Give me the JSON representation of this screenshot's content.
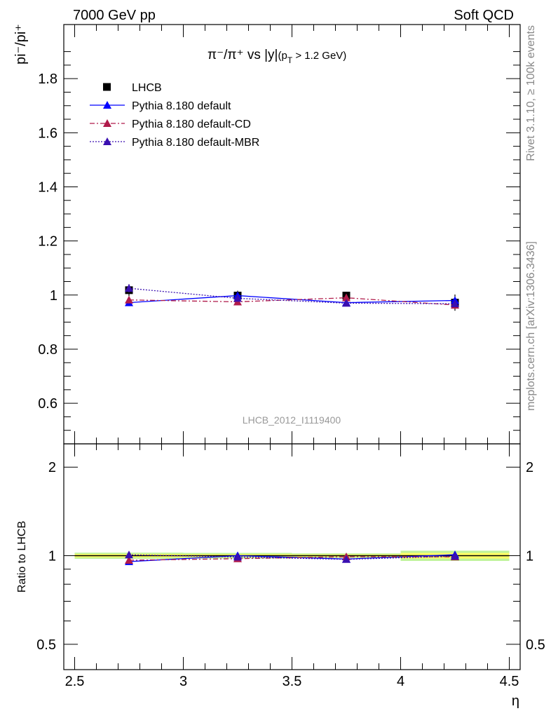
{
  "header": {
    "left": "7000 GeV pp",
    "right": "Soft QCD"
  },
  "side_labels": {
    "rivet": "Rivet 3.1.10, ≥ 100k events",
    "mcplots": "mcplots.cern.ch [arXiv:1306.3436]"
  },
  "chart_data": [
    {
      "type": "scatter",
      "panel": "main",
      "title": "π⁻/π⁺ vs |y|(pT > 1.2 GeV)",
      "title_parts": {
        "main": "π⁻/π⁺ vs |y|",
        "cut_prefix": "(p",
        "cut_sub": "T",
        "cut_suffix": " > 1.2 GeV)"
      },
      "ylabel": "pi⁻/pi⁺",
      "xlabel": "",
      "xlim": [
        2.45,
        4.55
      ],
      "ylim": [
        0.45,
        2.0
      ],
      "yticks": [
        0.6,
        0.8,
        1,
        1.2,
        1.4,
        1.6,
        1.8
      ],
      "ytick_labels": [
        "0.6",
        "0.8",
        "1",
        "1.2",
        "1.4",
        "1.6",
        "1.8"
      ],
      "watermark": "LHCB_2012_I1119400",
      "legend_position": "top-left",
      "x": [
        2.75,
        3.25,
        3.75,
        4.25
      ],
      "series": [
        {
          "name": "LHCB",
          "marker": "square",
          "color": "#000000",
          "line": "none",
          "values": [
            1.018,
            0.998,
            0.998,
            0.972
          ],
          "errors": [
            0.022,
            0.018,
            0.014,
            0.03
          ]
        },
        {
          "name": "Pythia 8.180 default",
          "marker": "triangle",
          "color": "#0000ff",
          "line": "solid",
          "values": [
            0.972,
            0.998,
            0.972,
            0.98
          ],
          "errors": [
            0.012,
            0.012,
            0.012,
            0.01
          ]
        },
        {
          "name": "Pythia 8.180 default-CD",
          "marker": "triangle",
          "color": "#b01a4a",
          "line": "dashdot",
          "values": [
            0.982,
            0.975,
            0.99,
            0.963
          ],
          "errors": [
            0.012,
            0.012,
            0.012,
            0.014
          ]
        },
        {
          "name": "Pythia 8.180 default-MBR",
          "marker": "triangle",
          "color": "#3a0fb0",
          "line": "dotted",
          "values": [
            1.025,
            0.988,
            0.97,
            0.968
          ],
          "errors": [
            0.015,
            0.012,
            0.012,
            0.012
          ]
        }
      ]
    },
    {
      "type": "scatter",
      "panel": "ratio",
      "title": "",
      "ylabel": "Ratio to LHCB",
      "xlabel": "η",
      "xlim": [
        2.45,
        4.55
      ],
      "ylim": [
        0.41,
        2.4
      ],
      "log_y": true,
      "yticks": [
        0.5,
        1,
        2
      ],
      "ytick_labels": [
        "0.5",
        "1",
        "2"
      ],
      "xticks": [
        2.5,
        3,
        3.5,
        4,
        4.5
      ],
      "xtick_labels": [
        "2.5",
        "3",
        "3.5",
        "4",
        "4.5"
      ],
      "reference": 1,
      "band_colors": {
        "inner": "#ffff66",
        "outer": "#bff39a"
      },
      "band_x": [
        2.5,
        3.0,
        3.5,
        4.0,
        4.5
      ],
      "band_halfwidth": [
        0.024,
        0.022,
        0.018,
        0.04
      ],
      "x": [
        2.75,
        3.25,
        3.75,
        4.25
      ],
      "series": [
        {
          "name": "Pythia 8.180 default",
          "color": "#0000ff",
          "marker": "triangle",
          "line": "solid",
          "values": [
            0.955,
            1.0,
            0.974,
            1.008
          ]
        },
        {
          "name": "Pythia 8.180 default-CD",
          "color": "#b01a4a",
          "marker": "triangle",
          "line": "dashdot",
          "values": [
            0.965,
            0.977,
            0.992,
            0.991
          ]
        },
        {
          "name": "Pythia 8.180 default-MBR",
          "color": "#3a0fb0",
          "marker": "triangle",
          "line": "dotted",
          "values": [
            1.007,
            0.99,
            0.972,
            0.996
          ]
        }
      ]
    }
  ]
}
